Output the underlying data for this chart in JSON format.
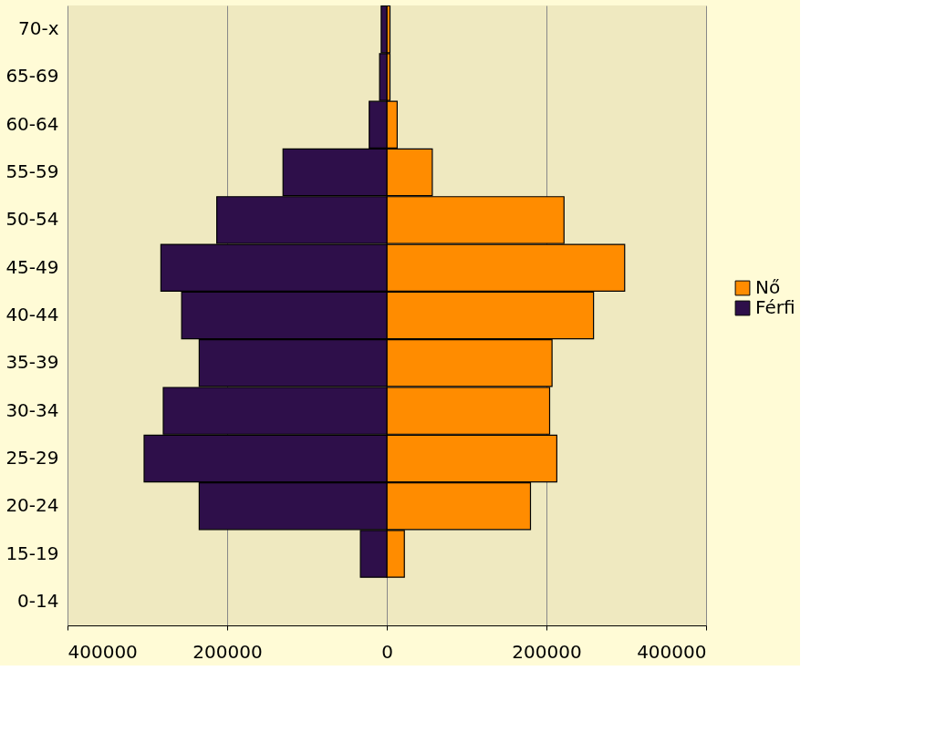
{
  "chart_data": {
    "type": "bar",
    "orientation": "horizontal",
    "categories": [
      "70-x",
      "65-69",
      "60-64",
      "55-59",
      "50-54",
      "45-49",
      "40-44",
      "35-39",
      "30-34",
      "25-29",
      "20-24",
      "15-19",
      "0-14"
    ],
    "series": [
      {
        "name": "Nő",
        "color": "#ff8c00",
        "values": [
          4000,
          4000,
          13000,
          57000,
          222000,
          298000,
          259000,
          207000,
          204000,
          213000,
          180000,
          22000,
          0
        ]
      },
      {
        "name": "Férfi",
        "color": "#2e0f4a",
        "values": [
          -7000,
          -9000,
          -22000,
          -130000,
          -213000,
          -283000,
          -257000,
          -235000,
          -280000,
          -304000,
          -235000,
          -33000,
          0
        ]
      }
    ],
    "xlim": [
      -400000,
      400000
    ],
    "xticks": [
      {
        "value": -400000,
        "label": "400000"
      },
      {
        "value": -200000,
        "label": "200000"
      },
      0,
      200000,
      400000
    ],
    "grid": "x",
    "legend": "right",
    "stacked": true
  }
}
